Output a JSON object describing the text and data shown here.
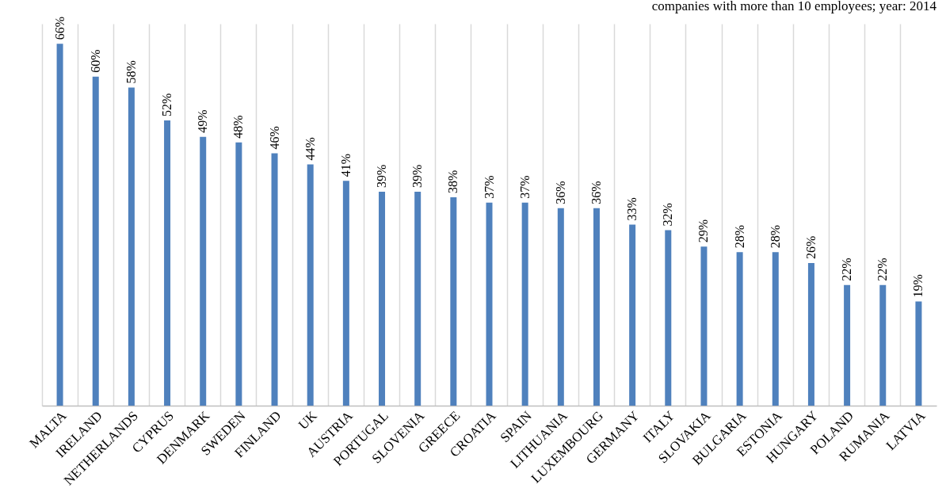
{
  "chart_data": {
    "type": "bar",
    "title": "companies with more than 10 employees; year: 2014",
    "categories": [
      "MALTA",
      "IRELAND",
      "NETHERLANDS",
      "CYPRUS",
      "DENMARK",
      "SWEDEN",
      "FINLAND",
      "UK",
      "AUSTRIA",
      "PORTUGAL",
      "SLOVENIA",
      "GREECE",
      "CROATIA",
      "SPAIN",
      "LITHUANIA",
      "LUXEMBOURG",
      "GERMANY",
      "ITALY",
      "SLOVAKIA",
      "BULGARIA",
      "ESTONIA",
      "HUNGARY",
      "POLAND",
      "RUMANIA",
      "LATVIA"
    ],
    "values": [
      66,
      60,
      58,
      52,
      49,
      48,
      46,
      44,
      41,
      39,
      39,
      38,
      37,
      37,
      36,
      36,
      33,
      32,
      29,
      28,
      28,
      26,
      22,
      22,
      19
    ],
    "value_labels": [
      "66%",
      "60%",
      "58%",
      "52%",
      "49%",
      "48%",
      "46%",
      "44%",
      "41%",
      "39%",
      "39%",
      "38%",
      "37%",
      "37%",
      "36%",
      "36%",
      "33%",
      "32%",
      "29%",
      "28%",
      "28%",
      "26%",
      "22%",
      "22%",
      "19%"
    ],
    "color": "#4f81bd",
    "grid": "x"
  }
}
